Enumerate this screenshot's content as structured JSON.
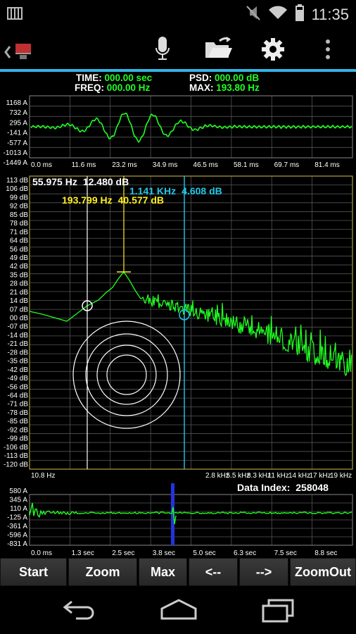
{
  "status_bar": {
    "time": "11:35"
  },
  "readout": {
    "time_label": "TIME:",
    "time_value": "000.00 sec",
    "freq_label": "FREQ:",
    "freq_value": "000.00 Hz",
    "psd_label": "PSD:",
    "psd_value": "000.00 dB",
    "max_label": "MAX:",
    "max_value": "193.80 Hz"
  },
  "top_plot": {
    "y_labels": [
      "1168 A",
      "732 A",
      "295 A",
      "-141 A",
      "-577 A",
      "-1013 A",
      "-1449 A"
    ],
    "x_labels": [
      "0.0 ms",
      "11.6 ms",
      "23.2 ms",
      "34.9 ms",
      "46.5 ms",
      "58.1 ms",
      "69.7 ms",
      "81.4 ms"
    ]
  },
  "spectrum": {
    "y_labels": [
      "113 dB",
      "106 dB",
      "99 dB",
      "92 dB",
      "85 dB",
      "78 dB",
      "71 dB",
      "64 dB",
      "56 dB",
      "49 dB",
      "42 dB",
      "35 dB",
      "28 dB",
      "21 dB",
      "14 dB",
      "07 dB",
      "00 dB",
      "-07 dB",
      "-14 dB",
      "-21 dB",
      "-28 dB",
      "-35 dB",
      "-42 dB",
      "-49 dB",
      "-56 dB",
      "-64 dB",
      "-71 dB",
      "-78 dB",
      "-85 dB",
      "-92 dB",
      "-99 dB",
      "-106 dB",
      "-113 dB",
      "-120 dB"
    ],
    "x_left_label": "10.8 Hz",
    "x_right_labels": [
      "2.8 kHz",
      "5.5 kHz",
      "8.3 kHz",
      "11 kHz",
      "14 kHz",
      "17 kHz",
      "19 kHz"
    ],
    "cursor_white": {
      "freq": "55.975 Hz",
      "level": "12.480 dB"
    },
    "cursor_yellow": {
      "freq": "193.799 Hz",
      "level": "40.577 dB"
    },
    "cursor_cyan": {
      "freq": "1.141 KHz",
      "level": "4.608 dB"
    },
    "data_index_label": "Data Index:",
    "data_index_value": "258048"
  },
  "bottom_plot": {
    "y_labels": [
      "580 A",
      "345 A",
      "110 A",
      "-125 A",
      "-361 A",
      "-596 A",
      "-831 A"
    ],
    "x_labels": [
      "0.0 ms",
      "1.3 sec",
      "2.5 sec",
      "3.8 sec",
      "5.0 sec",
      "6.3 sec",
      "7.5 sec",
      "8.8 sec"
    ]
  },
  "buttons": {
    "start": "Start",
    "zoom": "Zoom",
    "max": "Max",
    "left": "<--",
    "right": "-->",
    "zoomout": "ZoomOut"
  },
  "colors": {
    "signal": "#20ff20",
    "yellow_cursor": "#ffee22",
    "cyan_cursor": "#22c8e8",
    "accent": "#33b5e5",
    "frame": "#b0a040"
  }
}
